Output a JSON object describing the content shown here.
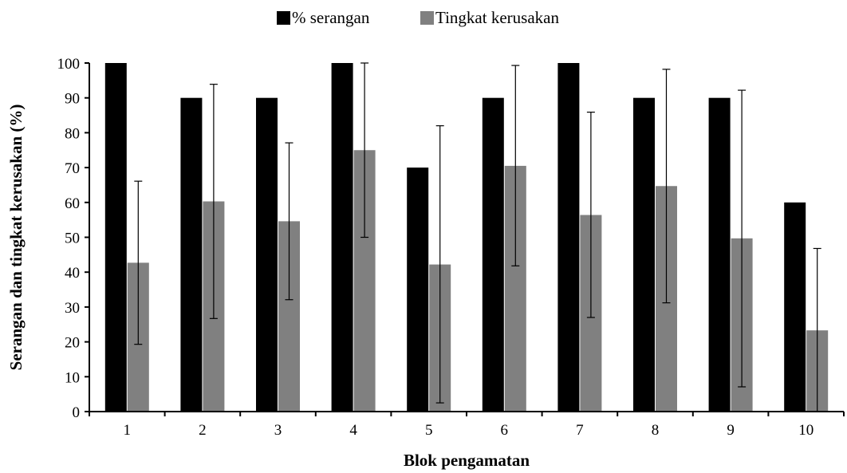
{
  "chart_data": {
    "type": "bar",
    "categories": [
      "1",
      "2",
      "3",
      "4",
      "5",
      "6",
      "7",
      "8",
      "9",
      "10"
    ],
    "series": [
      {
        "name": "% serangan",
        "color": "#000000",
        "values": [
          100,
          90,
          90,
          100,
          70,
          90,
          100,
          90,
          90,
          60
        ]
      },
      {
        "name": "Tingkat kerusakan",
        "color": "#808080",
        "values": [
          42.7,
          60.3,
          54.6,
          75.0,
          42.2,
          70.5,
          56.4,
          64.7,
          49.7,
          23.3
        ],
        "error_low": [
          19.3,
          26.7,
          32.1,
          50.0,
          2.5,
          41.8,
          27.0,
          31.2,
          7.1,
          0.0
        ],
        "error_high": [
          66.1,
          93.9,
          77.1,
          100.0,
          82.0,
          99.3,
          85.9,
          98.2,
          92.2,
          46.8
        ]
      }
    ],
    "xlabel": "Blok pengamatan",
    "ylabel": "Serangan dan tingkat kerusakan (%)",
    "ylim": [
      0,
      100
    ],
    "yticks": [
      0,
      10,
      20,
      30,
      40,
      50,
      60,
      70,
      80,
      90,
      100
    ],
    "grid": false,
    "legend_position": "top-center"
  }
}
